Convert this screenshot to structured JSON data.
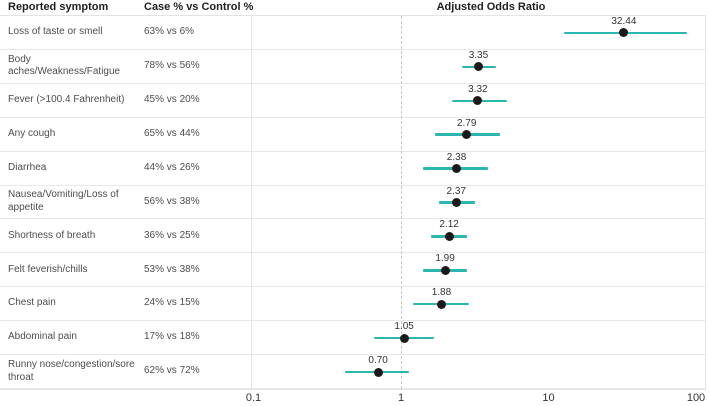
{
  "header": {
    "symptom_col": "Reported symptom",
    "case_col": "Case % vs Control %",
    "or_title": "Adjusted Odds Ratio"
  },
  "chart_data": {
    "type": "scatter",
    "subtype": "forest-plot-dot-with-ci",
    "x_scale": "log10",
    "xlim": [
      0.1,
      100
    ],
    "x_tick_values": [
      0.1,
      1,
      10,
      100
    ],
    "x_tick_labels": [
      "0.1",
      "1",
      "10",
      "100"
    ],
    "reference_line_x": 1,
    "grid": "row-separators-only",
    "rows": [
      {
        "symptom": "Loss of taste or smell",
        "case_vs_control": "63% vs 6%",
        "odds_ratio": 32.44,
        "odds_ratio_label": "32.44",
        "ci_low": 12.7,
        "ci_high": 87.0
      },
      {
        "symptom": "Body aches/Weakness/Fatigue",
        "case_vs_control": "78% vs 56%",
        "odds_ratio": 3.35,
        "odds_ratio_label": "3.35",
        "ci_low": 2.6,
        "ci_high": 4.4
      },
      {
        "symptom": "Fever (>100.4 Fahrenheit)",
        "case_vs_control": "45% vs 20%",
        "odds_ratio": 3.32,
        "odds_ratio_label": "3.32",
        "ci_low": 2.2,
        "ci_high": 5.2
      },
      {
        "symptom": "Any cough",
        "case_vs_control": "65% vs 44%",
        "odds_ratio": 2.79,
        "odds_ratio_label": "2.79",
        "ci_low": 1.7,
        "ci_high": 4.7
      },
      {
        "symptom": "Diarrhea",
        "case_vs_control": "44% vs 26%",
        "odds_ratio": 2.38,
        "odds_ratio_label": "2.38",
        "ci_low": 1.4,
        "ci_high": 3.9
      },
      {
        "symptom": "Nausea/Vomiting/Loss of appetite",
        "case_vs_control": "56% vs 38%",
        "odds_ratio": 2.37,
        "odds_ratio_label": "2.37",
        "ci_low": 1.8,
        "ci_high": 3.2
      },
      {
        "symptom": "Shortness of breath",
        "case_vs_control": "36% vs 25%",
        "odds_ratio": 2.12,
        "odds_ratio_label": "2.12",
        "ci_low": 1.6,
        "ci_high": 2.8
      },
      {
        "symptom": "Felt feverish/chills",
        "case_vs_control": "53% vs 38%",
        "odds_ratio": 1.99,
        "odds_ratio_label": "1.99",
        "ci_low": 1.4,
        "ci_high": 2.8
      },
      {
        "symptom": "Chest pain",
        "case_vs_control": "24% vs 15%",
        "odds_ratio": 1.88,
        "odds_ratio_label": "1.88",
        "ci_low": 1.2,
        "ci_high": 2.9
      },
      {
        "symptom": "Abdominal pain",
        "case_vs_control": "17% vs 18%",
        "odds_ratio": 1.05,
        "odds_ratio_label": "1.05",
        "ci_low": 0.66,
        "ci_high": 1.68
      },
      {
        "symptom": "Runny nose/congestion/sore throat",
        "case_vs_control": "62% vs 72%",
        "odds_ratio": 0.7,
        "odds_ratio_label": "0.70",
        "ci_low": 0.42,
        "ci_high": 1.13
      }
    ]
  },
  "colors": {
    "ci_bar": "#2ab7b0",
    "point": "#1a1a1a",
    "row_separator": "#e8e8e8",
    "frame": "#e3e3e3",
    "reference_line": "#c9c9c9",
    "row_text": "#4d4d4d",
    "header_text": "#1f1f1f",
    "value_label_text": "#333333",
    "tick_text": "#333333"
  }
}
